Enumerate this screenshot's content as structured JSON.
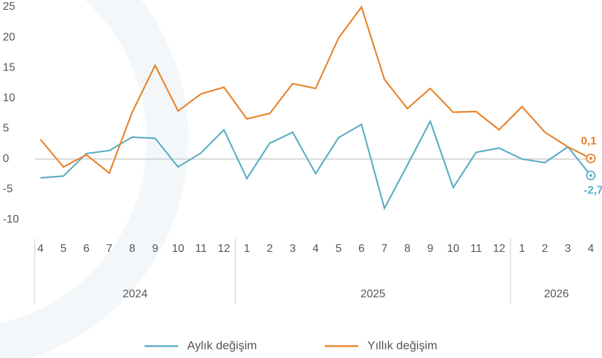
{
  "chart_data": {
    "type": "line",
    "categories": [
      "4",
      "5",
      "6",
      "7",
      "8",
      "9",
      "10",
      "11",
      "12",
      "1",
      "2",
      "3",
      "4",
      "5",
      "6",
      "7",
      "8",
      "9",
      "10",
      "11",
      "12",
      "1",
      "2",
      "3",
      "4"
    ],
    "groups": [
      "2024",
      "2025",
      "2026"
    ],
    "series": [
      {
        "name": "Aylık değişim",
        "color": "#5aadc3",
        "values": [
          -3.1,
          -2.8,
          0.9,
          1.4,
          3.6,
          3.4,
          -1.3,
          1.0,
          4.8,
          -3.2,
          2.6,
          4.4,
          -2.4,
          3.5,
          5.7,
          -8.1,
          -1.0,
          6.2,
          -4.7,
          1.1,
          1.8,
          0.0,
          -0.6,
          2.0,
          -2.7
        ],
        "value_labels": {
          "24": "-2,7"
        }
      },
      {
        "name": "Yıllık değişim",
        "color": "#e8822a",
        "values": [
          3.2,
          -1.3,
          0.7,
          -2.3,
          7.7,
          15.4,
          7.9,
          10.7,
          11.8,
          6.6,
          7.5,
          12.4,
          11.6,
          19.9,
          25.0,
          13.1,
          8.3,
          11.6,
          7.7,
          7.8,
          4.8,
          8.6,
          4.4,
          2.0,
          0.1
        ],
        "value_labels": {
          "24": "0,1"
        }
      }
    ],
    "ylim": [
      -10,
      25
    ],
    "yticks": [
      -10,
      -5,
      0,
      5,
      10,
      15,
      20,
      25
    ]
  }
}
